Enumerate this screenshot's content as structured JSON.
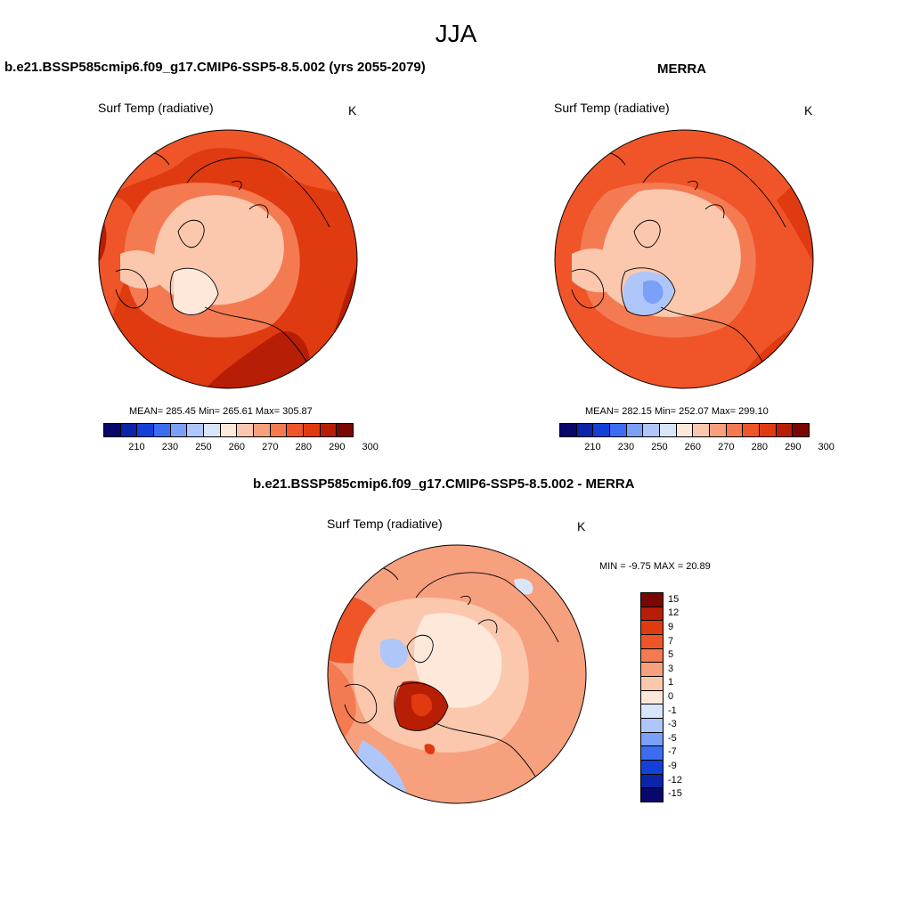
{
  "title": "JJA",
  "panels": [
    {
      "id": "model",
      "title": "b.e21.BSSP585cmip6.f09_g17.CMIP6-SSP5-8.5.002 (yrs 2055-2079)",
      "variable": "Surf Temp (radiative)",
      "units": "K",
      "stats": "MEAN= 285.45  Min= 265.61  Max= 305.87"
    },
    {
      "id": "obs",
      "title": "MERRA",
      "variable": "Surf Temp (radiative)",
      "units": "K",
      "stats": "MEAN= 282.15  Min= 252.07  Max= 299.10"
    },
    {
      "id": "diff",
      "title": "b.e21.BSSP585cmip6.f09_g17.CMIP6-SSP5-8.5.002 - MERRA",
      "variable": "Surf Temp (radiative)",
      "units": "K",
      "stats": "MIN =  -9.75 MAX =  20.89"
    }
  ],
  "abs_colorbar": {
    "ticks": [
      "210",
      "230",
      "250",
      "260",
      "270",
      "280",
      "290",
      "300"
    ],
    "colors": [
      "#08086b",
      "#0b24a8",
      "#1440d8",
      "#3c6cf0",
      "#7aa0f8",
      "#aec6fa",
      "#d8e6fc",
      "#fde8da",
      "#fbc8ae",
      "#f7a07e",
      "#f47a52",
      "#ef5528",
      "#e03a10",
      "#b81e06",
      "#7a0802"
    ]
  },
  "diff_colorbar": {
    "ticks": [
      "15",
      "12",
      "9",
      "7",
      "5",
      "3",
      "1",
      "0",
      "-1",
      "-3",
      "-5",
      "-7",
      "-9",
      "-12",
      "-15"
    ],
    "colors": [
      "#7a0802",
      "#b81e06",
      "#e03a10",
      "#ef5528",
      "#f47a52",
      "#f7a07e",
      "#fbc8ae",
      "#fde8da",
      "#d8e6fc",
      "#aec6fa",
      "#7aa0f8",
      "#3c6cf0",
      "#1440d8",
      "#0b24a8",
      "#08086b"
    ]
  }
}
